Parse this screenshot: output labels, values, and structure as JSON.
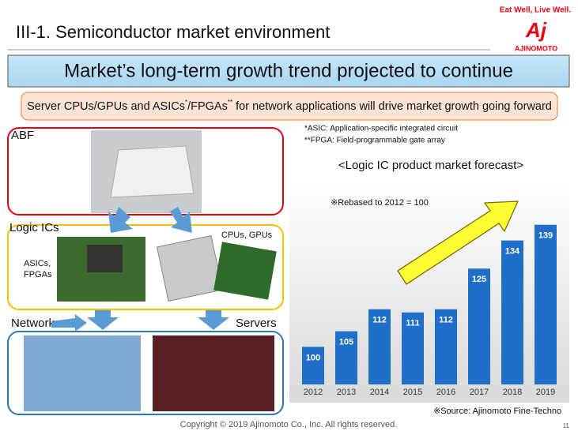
{
  "header": {
    "title": "III-1. Semiconductor market environment",
    "tagline": "Eat Well, Live Well.",
    "brand": "AJINOMOTO"
  },
  "banner": "Market’s long-term growth trend projected to continue",
  "summary_parts": [
    "Server CPUs/GPUs and ASICs",
    "*",
    "/FPGAs",
    "**",
    " for network applications will drive market growth going forward"
  ],
  "footnotes": [
    "*ASIC: Application-specific integrated circuit",
    "**FPGA: Field-programmable gate array"
  ],
  "diagram": {
    "abf": "ABF",
    "logic": "Logic ICs",
    "asic": [
      "ASICs,",
      "FPGAs"
    ],
    "cpu": "CPUs, GPUs",
    "networks": "Networks",
    "servers": "Servers"
  },
  "chart_data": {
    "type": "bar",
    "title": "<Logic IC product market forecast>",
    "annotation": "※Rebased to 2012 = 100",
    "source": "※Source: Ajinomoto Fine-Techno",
    "categories": [
      "2012",
      "2013",
      "2014",
      "2015",
      "2016",
      "2017",
      "2018",
      "2019"
    ],
    "values": [
      100,
      105,
      112,
      111,
      112,
      125,
      134,
      139
    ],
    "color": "#1f6fc8",
    "ylim": [
      88,
      145
    ]
  },
  "footer": {
    "copyright": "Copyright © 2019 Ajinomoto Co., Inc. All rights reserved.",
    "page": "11"
  }
}
